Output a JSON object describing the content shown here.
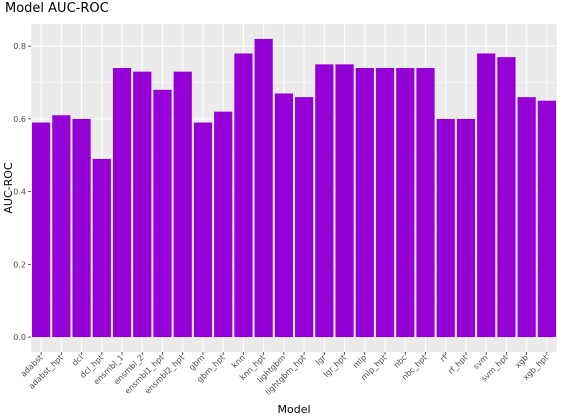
{
  "chart_data": {
    "type": "bar",
    "title": "Model AUC-ROC",
    "xlabel": "Model",
    "ylabel": "AUC-ROC",
    "categories": [
      "adabst",
      "adabst_hpt",
      "dcl",
      "dcl_hpt",
      "ensmbl_1",
      "ensmbl_2",
      "ensmbl1_hpt",
      "ensmbl2_hpt",
      "gbm",
      "gbm_hpt",
      "knn",
      "knn_hpt",
      "lightgbm",
      "lightgbm_hpt",
      "lgr",
      "lgr_hpt",
      "mlp",
      "mlp_hpt",
      "nbc",
      "nbc_hpt",
      "rf",
      "rf_hpt",
      "svm",
      "svm_hpt",
      "xgb",
      "xgb_hpt"
    ],
    "values": [
      0.59,
      0.61,
      0.6,
      0.49,
      0.74,
      0.73,
      0.68,
      0.73,
      0.59,
      0.62,
      0.78,
      0.82,
      0.67,
      0.66,
      0.75,
      0.75,
      0.74,
      0.74,
      0.74,
      0.74,
      0.6,
      0.6,
      0.78,
      0.77,
      0.66,
      0.65
    ],
    "yticks": [
      0.0,
      0.2,
      0.4,
      0.6,
      0.8
    ],
    "ytick_labels": [
      "0.0",
      "0.2",
      "0.4",
      "0.6",
      "0.8"
    ],
    "ylim": [
      -0.041,
      0.861
    ],
    "grid": true,
    "legend": "none",
    "bar_color": "#9400d3",
    "panel_color": "#ebebeb",
    "grid_color": "#ffffff"
  }
}
